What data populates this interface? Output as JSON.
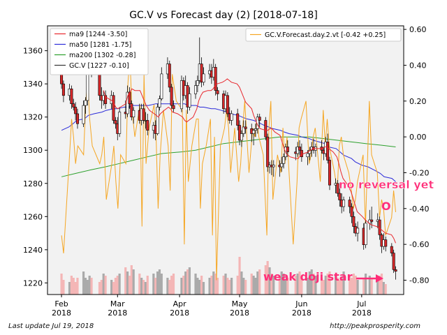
{
  "chart_data": {
    "type": "candlestick",
    "title": "GC.V vs Forecast day (2)  [2018-07-18]",
    "x_ticks": [
      {
        "date": "2018-02-01",
        "label": "Feb\n2018"
      },
      {
        "date": "2018-03-01",
        "label": "Mar\n2018"
      },
      {
        "date": "2018-04-01",
        "label": "Apr\n2018"
      },
      {
        "date": "2018-05-01",
        "label": "May\n2018"
      },
      {
        "date": "2018-06-01",
        "label": "Jun\n2018"
      },
      {
        "date": "2018-07-01",
        "label": "Jul\n2018"
      }
    ],
    "xlim": [
      "2018-01-25",
      "2018-07-22"
    ],
    "y_left": {
      "ticks": [
        1220,
        1240,
        1260,
        1280,
        1300,
        1320,
        1340,
        1360
      ],
      "ylim": [
        1213,
        1375
      ]
    },
    "y_right": {
      "ticks": [
        "0.60",
        "0.40",
        "0.20",
        "0.00",
        "-0.20",
        "-0.40",
        "-0.60",
        "-0.80"
      ],
      "tick_values": [
        0.6,
        0.4,
        0.2,
        0.0,
        -0.2,
        -0.4,
        -0.6,
        -0.8
      ],
      "ylim": [
        -0.88,
        0.62
      ]
    },
    "legend_left": {
      "placement": "top-left",
      "entries": [
        {
          "label": "ma9 [1244 -3.50]",
          "color": "#e8262c"
        },
        {
          "label": "ma50 [1281 -1.75]",
          "color": "#2b2bd9"
        },
        {
          "label": "ma200 [1302 -0.28]",
          "color": "#2ca02c"
        },
        {
          "label": "GC.V [1227 -0.10]",
          "color": "#333333"
        }
      ]
    },
    "legend_right": {
      "placement": "top-right",
      "entries": [
        {
          "label": "GC.V.Forecast.day.2.vt [-0.42 +0.25]",
          "color": "#f5a623"
        }
      ]
    },
    "annotations": [
      {
        "text": "no reversal yet",
        "color": "#ff2d78",
        "x": "2018-07-09",
        "y": 1277
      },
      {
        "text": "O",
        "color": "#ff2d78",
        "x": "2018-07-09",
        "y": 1264
      },
      {
        "text": "weak doji star",
        "color": "#ff2d78",
        "x": "2018-06-27",
        "y": 1224
      }
    ],
    "colors": {
      "up": "#ffffff",
      "down": "#d62728",
      "volume_up": "#aaaaaa",
      "volume_down": "#f4b6b6",
      "forecast": "#f5a623"
    },
    "ohlc": [
      [
        "2018-02-01",
        1346,
        1350,
        1337,
        1340
      ],
      [
        "2018-02-02",
        1340,
        1342,
        1329,
        1333
      ],
      [
        "2018-02-05",
        1333,
        1340,
        1330,
        1337
      ],
      [
        "2018-02-06",
        1337,
        1339,
        1325,
        1328
      ],
      [
        "2018-02-07",
        1328,
        1331,
        1324,
        1326
      ],
      [
        "2018-02-08",
        1326,
        1329,
        1318,
        1322
      ],
      [
        "2018-02-09",
        1322,
        1325,
        1313,
        1316
      ],
      [
        "2018-02-12",
        1316,
        1330,
        1314,
        1327
      ],
      [
        "2018-02-13",
        1327,
        1332,
        1322,
        1330
      ],
      [
        "2018-02-14",
        1330,
        1351,
        1327,
        1350
      ],
      [
        "2018-02-15",
        1350,
        1362,
        1346,
        1355
      ],
      [
        "2018-02-16",
        1355,
        1358,
        1344,
        1349
      ],
      [
        "2018-02-20",
        1349,
        1350,
        1330,
        1333
      ],
      [
        "2018-02-21",
        1333,
        1338,
        1325,
        1330
      ],
      [
        "2018-02-22",
        1330,
        1336,
        1327,
        1333
      ],
      [
        "2018-02-23",
        1333,
        1336,
        1325,
        1328
      ],
      [
        "2018-02-26",
        1328,
        1336,
        1325,
        1333
      ],
      [
        "2018-02-27",
        1333,
        1335,
        1316,
        1318
      ],
      [
        "2018-02-28",
        1318,
        1320,
        1313,
        1316
      ],
      [
        "2018-03-01",
        1316,
        1320,
        1306,
        1310
      ],
      [
        "2018-03-02",
        1310,
        1326,
        1308,
        1323
      ],
      [
        "2018-03-05",
        1323,
        1330,
        1319,
        1322
      ],
      [
        "2018-03-06",
        1322,
        1339,
        1320,
        1335
      ],
      [
        "2018-03-07",
        1335,
        1338,
        1325,
        1328
      ],
      [
        "2018-03-08",
        1328,
        1330,
        1318,
        1320
      ],
      [
        "2018-03-09",
        1320,
        1326,
        1316,
        1324
      ],
      [
        "2018-03-12",
        1324,
        1328,
        1316,
        1318
      ],
      [
        "2018-03-13",
        1318,
        1328,
        1315,
        1325
      ],
      [
        "2018-03-14",
        1325,
        1328,
        1316,
        1318
      ],
      [
        "2018-03-15",
        1318,
        1323,
        1313,
        1318
      ],
      [
        "2018-03-16",
        1318,
        1322,
        1309,
        1312
      ],
      [
        "2018-03-19",
        1312,
        1317,
        1307,
        1315
      ],
      [
        "2018-03-20",
        1315,
        1318,
        1306,
        1310
      ],
      [
        "2018-03-21",
        1310,
        1328,
        1309,
        1326
      ],
      [
        "2018-03-22",
        1326,
        1333,
        1324,
        1331
      ],
      [
        "2018-03-23",
        1331,
        1350,
        1330,
        1346
      ],
      [
        "2018-03-26",
        1346,
        1356,
        1343,
        1352
      ],
      [
        "2018-03-27",
        1352,
        1354,
        1335,
        1338
      ],
      [
        "2018-03-28",
        1338,
        1340,
        1325,
        1327
      ],
      [
        "2018-03-29",
        1327,
        1330,
        1323,
        1325
      ],
      [
        "2018-04-02",
        1325,
        1345,
        1323,
        1342
      ],
      [
        "2018-04-03",
        1342,
        1344,
        1330,
        1333
      ],
      [
        "2018-04-04",
        1333,
        1345,
        1331,
        1339
      ],
      [
        "2018-04-05",
        1339,
        1341,
        1322,
        1326
      ],
      [
        "2018-04-06",
        1326,
        1338,
        1324,
        1334
      ],
      [
        "2018-04-09",
        1334,
        1342,
        1331,
        1339
      ],
      [
        "2018-04-10",
        1339,
        1345,
        1335,
        1342
      ],
      [
        "2018-04-11",
        1342,
        1368,
        1340,
        1352
      ],
      [
        "2018-04-12",
        1352,
        1356,
        1338,
        1341
      ],
      [
        "2018-04-13",
        1341,
        1350,
        1339,
        1346
      ],
      [
        "2018-04-16",
        1346,
        1352,
        1343,
        1348
      ],
      [
        "2018-04-17",
        1348,
        1352,
        1340,
        1344
      ],
      [
        "2018-04-18",
        1344,
        1355,
        1342,
        1350
      ],
      [
        "2018-04-19",
        1350,
        1352,
        1333,
        1336
      ],
      [
        "2018-04-20",
        1336,
        1338,
        1330,
        1334
      ],
      [
        "2018-04-23",
        1334,
        1336,
        1322,
        1325
      ],
      [
        "2018-04-24",
        1325,
        1336,
        1323,
        1333
      ],
      [
        "2018-04-25",
        1333,
        1335,
        1320,
        1322
      ],
      [
        "2018-04-26",
        1322,
        1326,
        1316,
        1318
      ],
      [
        "2018-04-27",
        1318,
        1324,
        1315,
        1322
      ],
      [
        "2018-04-30",
        1322,
        1325,
        1312,
        1315
      ],
      [
        "2018-05-01",
        1315,
        1318,
        1303,
        1306
      ],
      [
        "2018-05-02",
        1306,
        1312,
        1302,
        1310
      ],
      [
        "2018-05-03",
        1310,
        1318,
        1308,
        1314
      ],
      [
        "2018-05-04",
        1314,
        1318,
        1310,
        1313
      ],
      [
        "2018-05-07",
        1313,
        1316,
        1305,
        1310
      ],
      [
        "2018-05-08",
        1310,
        1313,
        1303,
        1312
      ],
      [
        "2018-05-09",
        1312,
        1316,
        1308,
        1313
      ],
      [
        "2018-05-10",
        1313,
        1322,
        1310,
        1320
      ],
      [
        "2018-05-11",
        1320,
        1322,
        1314,
        1318
      ],
      [
        "2018-05-14",
        1318,
        1320,
        1306,
        1308
      ],
      [
        "2018-05-15",
        1308,
        1310,
        1287,
        1290
      ],
      [
        "2018-05-16",
        1290,
        1293,
        1286,
        1291
      ],
      [
        "2018-05-17",
        1291,
        1294,
        1285,
        1290
      ],
      [
        "2018-05-18",
        1290,
        1294,
        1284,
        1291
      ],
      [
        "2018-05-21",
        1291,
        1294,
        1284,
        1290
      ],
      [
        "2018-05-22",
        1290,
        1296,
        1287,
        1292
      ],
      [
        "2018-05-23",
        1292,
        1298,
        1289,
        1296
      ],
      [
        "2018-05-24",
        1296,
        1304,
        1294,
        1302
      ],
      [
        "2018-05-25",
        1302,
        1306,
        1296,
        1299
      ],
      [
        "2018-05-29",
        1299,
        1302,
        1294,
        1298
      ],
      [
        "2018-05-30",
        1298,
        1305,
        1296,
        1302
      ],
      [
        "2018-05-31",
        1302,
        1306,
        1297,
        1300
      ],
      [
        "2018-06-01",
        1300,
        1304,
        1293,
        1296
      ],
      [
        "2018-06-04",
        1296,
        1300,
        1291,
        1298
      ],
      [
        "2018-06-05",
        1298,
        1302,
        1294,
        1300
      ],
      [
        "2018-06-06",
        1300,
        1305,
        1296,
        1302
      ],
      [
        "2018-06-07",
        1302,
        1307,
        1298,
        1300
      ],
      [
        "2018-06-08",
        1300,
        1304,
        1296,
        1302
      ],
      [
        "2018-06-11",
        1302,
        1306,
        1298,
        1300
      ],
      [
        "2018-06-12",
        1300,
        1302,
        1294,
        1298
      ],
      [
        "2018-06-13",
        1298,
        1308,
        1296,
        1305
      ],
      [
        "2018-06-14",
        1305,
        1310,
        1292,
        1294
      ],
      [
        "2018-06-15",
        1294,
        1296,
        1276,
        1279
      ],
      [
        "2018-06-18",
        1279,
        1283,
        1274,
        1280
      ],
      [
        "2018-06-19",
        1280,
        1282,
        1272,
        1274
      ],
      [
        "2018-06-20",
        1274,
        1277,
        1266,
        1270
      ],
      [
        "2018-06-21",
        1270,
        1274,
        1262,
        1266
      ],
      [
        "2018-06-22",
        1266,
        1272,
        1263,
        1270
      ],
      [
        "2018-06-25",
        1270,
        1272,
        1262,
        1266
      ],
      [
        "2018-06-26",
        1266,
        1268,
        1256,
        1260
      ],
      [
        "2018-06-27",
        1260,
        1263,
        1250,
        1254
      ],
      [
        "2018-06-28",
        1254,
        1256,
        1248,
        1250
      ],
      [
        "2018-06-29",
        1250,
        1257,
        1245,
        1253
      ],
      [
        "2018-07-02",
        1253,
        1256,
        1240,
        1243
      ],
      [
        "2018-07-03",
        1243,
        1258,
        1241,
        1256
      ],
      [
        "2018-07-05",
        1256,
        1264,
        1252,
        1258
      ],
      [
        "2018-07-06",
        1258,
        1266,
        1253,
        1257
      ],
      [
        "2018-07-09",
        1257,
        1262,
        1253,
        1258
      ],
      [
        "2018-07-10",
        1258,
        1260,
        1246,
        1249
      ],
      [
        "2018-07-11",
        1249,
        1250,
        1238,
        1242
      ],
      [
        "2018-07-12",
        1242,
        1250,
        1240,
        1246
      ],
      [
        "2018-07-13",
        1246,
        1248,
        1239,
        1242
      ],
      [
        "2018-07-16",
        1242,
        1244,
        1236,
        1238
      ],
      [
        "2018-07-17",
        1238,
        1240,
        1226,
        1228
      ],
      [
        "2018-07-18",
        1228,
        1230,
        1222,
        1227
      ]
    ],
    "ma9": [
      [
        1336,
        1332,
        1330,
        1329,
        1326,
        1325,
        1326,
        1328,
        1333,
        1335,
        1337,
        1336,
        1336,
        1333,
        1330,
        1327,
        1324,
        1322,
        1321,
        1320,
        1322,
        1324,
        1326,
        1325,
        1323,
        1322,
        1320,
        1318,
        1317,
        1318,
        1320,
        1325,
        1330,
        1333,
        1335,
        1336,
        1336,
        1337,
        1339,
        1340,
        1341,
        1342,
        1343,
        1342,
        1341,
        1340,
        1338,
        1335,
        1332,
        1329,
        1325,
        1321,
        1318,
        1315,
        1313,
        1312,
        1312,
        1313,
        1313,
        1311,
        1309,
        1305,
        1301,
        1298,
        1296,
        1295,
        1295,
        1297,
        1298,
        1299,
        1300,
        1301,
        1301,
        1301,
        1301,
        1302,
        1302,
        1301,
        1299,
        1296,
        1292,
        1287,
        1283,
        1279,
        1275,
        1271,
        1267,
        1263,
        1260,
        1258,
        1256,
        1255,
        1254,
        1253,
        1252,
        1251,
        1250,
        1249,
        1247,
        1244
      ]
    ],
    "ma50": [
      1312,
      1314,
      1316,
      1318,
      1319,
      1321,
      1322,
      1323,
      1324,
      1325,
      1325,
      1326,
      1326,
      1327,
      1327,
      1327,
      1327,
      1328,
      1328,
      1328,
      1328,
      1328,
      1328,
      1327,
      1327,
      1326,
      1326,
      1325,
      1325,
      1324,
      1323,
      1322,
      1321,
      1320,
      1319,
      1318,
      1317,
      1315,
      1314,
      1313,
      1312,
      1311,
      1310,
      1309,
      1308,
      1307,
      1306,
      1305,
      1304,
      1302,
      1301,
      1299,
      1297,
      1295,
      1293,
      1291,
      1290,
      1288,
      1286,
      1284,
      1283,
      1281
    ],
    "ma200": [
      1284,
      1286,
      1288,
      1290,
      1292,
      1294,
      1296,
      1298,
      1299,
      1300,
      1302,
      1304,
      1305,
      1306,
      1307,
      1308,
      1308,
      1308,
      1307,
      1306,
      1305,
      1304,
      1303,
      1302
    ],
    "forecast": [
      -0.55,
      -0.65,
      -0.1,
      0.1,
      0.0,
      -0.15,
      -0.05,
      -0.1,
      0.18,
      0.33,
      0.1,
      -0.05,
      -0.15,
      -0.1,
      0.0,
      -0.35,
      -0.15,
      -0.05,
      -0.25,
      -0.4,
      -0.1,
      -0.15,
      0.3,
      0.45,
      0.15,
      0.0,
      0.18,
      -0.5,
      0.35,
      -0.15,
      0.05,
      0.18,
      0.0,
      -0.4,
      -0.1,
      0.15,
      -0.05,
      -0.3,
      0.35,
      0.2,
      0.15,
      -0.6,
      0.15,
      -0.25,
      -0.05,
      0.1,
      0.1,
      -0.4,
      -0.15,
      -0.05,
      0.1,
      -0.55,
      0.0,
      -0.8,
      -0.05,
      0.05,
      0.15,
      0.05,
      -0.2,
      0.05,
      -0.25,
      -0.15,
      0.05,
      0.2,
      -0.2,
      0.05,
      0.0,
      0.1,
      0.0,
      -0.1,
      -0.55,
      0.05,
      0.2,
      -0.35,
      -0.1,
      -0.2,
      0.05,
      -0.15,
      0.0,
      -0.6,
      -0.25,
      0.05,
      0.1,
      0.2,
      -0.15,
      -0.1,
      0.0,
      0.05,
      -0.25,
      0.15,
      -0.05,
      0.1,
      -0.05,
      -0.2,
      -0.3,
      -0.05,
      0.0,
      -0.1,
      -0.2,
      -0.3,
      -0.4,
      -0.35,
      -0.25,
      -0.1,
      -0.5,
      0.2,
      -0.1,
      -0.2,
      -0.45,
      -0.35,
      -0.4,
      -0.55,
      -0.45,
      -0.3,
      -0.42
    ],
    "volume": [
      0.5,
      0.35,
      0.3,
      0.45,
      0.4,
      0.3,
      0.4,
      0.55,
      0.4,
      0.35,
      0.45,
      0.4,
      0.3,
      0.35,
      0.5,
      0.45,
      0.35,
      0.3,
      0.4,
      0.45,
      0.5,
      0.65,
      0.55,
      0.45,
      0.7,
      0.6,
      0.5,
      0.4,
      0.35,
      0.3,
      0.45,
      0.5,
      0.4,
      0.55,
      0.6,
      0.5,
      0.4,
      0.35,
      0.45,
      0.5,
      0.4,
      0.45,
      0.55,
      0.6,
      0.65,
      0.5,
      0.4,
      0.35,
      0.45,
      0.3,
      0.4,
      0.45,
      0.55,
      0.5,
      0.4,
      0.45,
      0.5,
      0.4,
      0.35,
      0.4,
      0.45,
      0.9,
      0.55,
      0.4,
      0.35,
      0.5,
      0.45,
      0.4,
      0.55,
      0.6,
      0.7,
      0.8,
      0.65,
      0.5,
      0.45,
      0.4,
      0.55,
      0.5,
      0.35,
      0.4,
      0.45,
      0.5,
      0.55,
      0.45,
      0.4,
      0.55,
      0.6,
      0.5,
      0.45,
      0.4,
      0.35,
      0.45,
      0.5,
      0.55,
      0.45,
      0.4,
      0.35,
      0.4,
      0.55,
      0.45,
      0.4,
      0.5,
      0.45,
      0.35,
      0.4,
      0.5,
      0.45,
      0.4,
      0.35,
      0.45,
      0.5,
      0.3,
      0.25
    ]
  },
  "footer": {
    "left": "Last update Jul 19, 2018",
    "right": "http://peakprosperity.com"
  }
}
